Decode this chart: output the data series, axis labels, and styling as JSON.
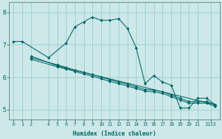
{
  "xlabel": "Humidex (Indice chaleur)",
  "ylabel": "",
  "xlim": [
    -0.5,
    23.5
  ],
  "ylim": [
    4.7,
    8.3
  ],
  "yticks": [
    5,
    6,
    7,
    8
  ],
  "xtick_labels": [
    "0",
    "1",
    "2",
    "4",
    "5",
    "6",
    "7",
    "8",
    "9",
    "10",
    "11",
    "12",
    "13",
    "14",
    "15",
    "16",
    "17",
    "18",
    "19",
    "20",
    "21",
    "2223"
  ],
  "xtick_positions": [
    0,
    1,
    2,
    4,
    5,
    6,
    7,
    8,
    9,
    10,
    11,
    12,
    13,
    14,
    15,
    16,
    17,
    18,
    19,
    20,
    21,
    22.5
  ],
  "background_color": "#cce8e8",
  "grid_color": "#99cccc",
  "line_color": "#006666",
  "series": [
    {
      "x": [
        0,
        1,
        4,
        6,
        7,
        8,
        9,
        10,
        11,
        12,
        13,
        14,
        15,
        16,
        17,
        18,
        19,
        20,
        21,
        22,
        23
      ],
      "y": [
        7.1,
        7.1,
        6.6,
        7.05,
        7.55,
        7.7,
        7.85,
        7.75,
        7.75,
        7.8,
        7.5,
        6.9,
        5.8,
        6.05,
        5.85,
        5.75,
        5.05,
        5.05,
        5.35,
        5.35,
        5.15
      ]
    },
    {
      "x": [
        2,
        5,
        6,
        23
      ],
      "y": [
        6.65,
        6.35,
        6.28,
        5.15
      ]
    },
    {
      "x": [
        2,
        5,
        6,
        7,
        8,
        9,
        10,
        11,
        12,
        13,
        14,
        15,
        16,
        17,
        18,
        19,
        20,
        21,
        22,
        23
      ],
      "y": [
        6.6,
        6.38,
        6.3,
        6.22,
        6.15,
        6.08,
        6.0,
        5.92,
        5.85,
        5.78,
        5.7,
        5.62,
        5.6,
        5.55,
        5.45,
        5.35,
        5.25,
        5.25,
        5.25,
        5.15
      ]
    },
    {
      "x": [
        2,
        5,
        6,
        7,
        8,
        9,
        10,
        11,
        12,
        13,
        14,
        15,
        16,
        17,
        18,
        19,
        20,
        21,
        22,
        23
      ],
      "y": [
        6.55,
        6.32,
        6.25,
        6.18,
        6.1,
        6.03,
        5.95,
        5.87,
        5.8,
        5.73,
        5.65,
        5.57,
        5.55,
        5.5,
        5.4,
        5.3,
        5.2,
        5.2,
        5.2,
        5.1
      ]
    }
  ]
}
